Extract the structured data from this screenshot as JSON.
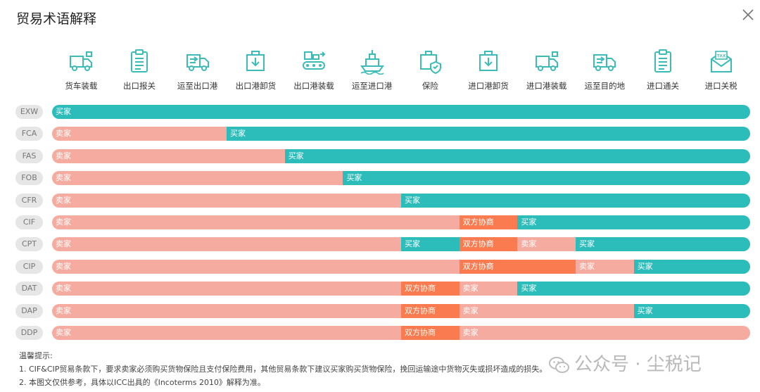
{
  "header": {
    "title": "贸易术语解释"
  },
  "steps": [
    {
      "label": "货车装载",
      "icon": "truck-loading-icon"
    },
    {
      "label": "出口报关",
      "icon": "clipboard-icon"
    },
    {
      "label": "运至出口港",
      "icon": "delivery-truck-icon"
    },
    {
      "label": "出口港卸货",
      "icon": "box-unload-icon"
    },
    {
      "label": "出口港装载",
      "icon": "conveyor-icon"
    },
    {
      "label": "运至进口港",
      "icon": "ship-icon"
    },
    {
      "label": "保险",
      "icon": "insured-box-icon"
    },
    {
      "label": "进口港卸货",
      "icon": "box-unload-icon"
    },
    {
      "label": "进口港装载",
      "icon": "truck-loading-icon"
    },
    {
      "label": "运至目的地",
      "icon": "delivery-truck-icon"
    },
    {
      "label": "进口通关",
      "icon": "clipboard-icon"
    },
    {
      "label": "进口关税",
      "icon": "tax-envelope-icon"
    }
  ],
  "colors": {
    "seller": "#f6aba0",
    "buyer": "#2cbdbb",
    "negotiate": "#f97b4f",
    "term_bg": "#e6e6e6",
    "icon": "#3cbcb7"
  },
  "terms": [
    {
      "code": "EXW",
      "segments": [
        {
          "label": "买家",
          "party": "buyer",
          "span": 12
        }
      ]
    },
    {
      "code": "FCA",
      "segments": [
        {
          "label": "卖家",
          "party": "seller",
          "span": 3
        },
        {
          "label": "买家",
          "party": "buyer",
          "span": 9
        }
      ]
    },
    {
      "code": "FAS",
      "segments": [
        {
          "label": "卖家",
          "party": "seller",
          "span": 4
        },
        {
          "label": "买家",
          "party": "buyer",
          "span": 8
        }
      ]
    },
    {
      "code": "FOB",
      "segments": [
        {
          "label": "卖家",
          "party": "seller",
          "span": 5
        },
        {
          "label": "买家",
          "party": "buyer",
          "span": 7
        }
      ]
    },
    {
      "code": "CFR",
      "segments": [
        {
          "label": "卖家",
          "party": "seller",
          "span": 6
        },
        {
          "label": "买家",
          "party": "buyer",
          "span": 6
        }
      ]
    },
    {
      "code": "CIF",
      "segments": [
        {
          "label": "卖家",
          "party": "seller",
          "span": 7
        },
        {
          "label": "双方协商",
          "party": "negotiate",
          "span": 1
        },
        {
          "label": "买家",
          "party": "buyer",
          "span": 4
        }
      ]
    },
    {
      "code": "CPT",
      "segments": [
        {
          "label": "卖家",
          "party": "seller",
          "span": 6
        },
        {
          "label": "买家",
          "party": "buyer",
          "span": 1
        },
        {
          "label": "双方协商",
          "party": "negotiate",
          "span": 1
        },
        {
          "label": "卖家",
          "party": "seller",
          "span": 1
        },
        {
          "label": "买家",
          "party": "buyer",
          "span": 3
        }
      ]
    },
    {
      "code": "CIP",
      "segments": [
        {
          "label": "卖家",
          "party": "seller",
          "span": 7
        },
        {
          "label": "双方协商",
          "party": "negotiate",
          "span": 2
        },
        {
          "label": "卖家",
          "party": "seller",
          "span": 1
        },
        {
          "label": "买家",
          "party": "buyer",
          "span": 2
        }
      ]
    },
    {
      "code": "DAT",
      "segments": [
        {
          "label": "卖家",
          "party": "seller",
          "span": 6
        },
        {
          "label": "双方协商",
          "party": "negotiate",
          "span": 1
        },
        {
          "label": "卖家",
          "party": "seller",
          "span": 1
        },
        {
          "label": "买家",
          "party": "buyer",
          "span": 4
        }
      ]
    },
    {
      "code": "DAP",
      "segments": [
        {
          "label": "卖家",
          "party": "seller",
          "span": 6
        },
        {
          "label": "双方协商",
          "party": "negotiate",
          "span": 1
        },
        {
          "label": "卖家",
          "party": "seller",
          "span": 3
        },
        {
          "label": "买家",
          "party": "buyer",
          "span": 2
        }
      ]
    },
    {
      "code": "DDP",
      "segments": [
        {
          "label": "卖家",
          "party": "seller",
          "span": 6
        },
        {
          "label": "双方协商",
          "party": "negotiate",
          "span": 1
        },
        {
          "label": "卖家",
          "party": "seller",
          "span": 5
        }
      ]
    }
  ],
  "notes": {
    "heading": "温馨提示:",
    "line1": "1. CIF&CIP贸易条款下，要求卖家必须购买货物保险且支付保险费用，其他贸易条款下建议买家购买货物保险，挽回运输途中货物灭失或损坏造成的损失。",
    "line2": "2. 本图文仅供参考，具体以ICC出具的《Incoterms 2010》解释为准。"
  },
  "watermark": {
    "text": "公众号 · 尘税记"
  }
}
